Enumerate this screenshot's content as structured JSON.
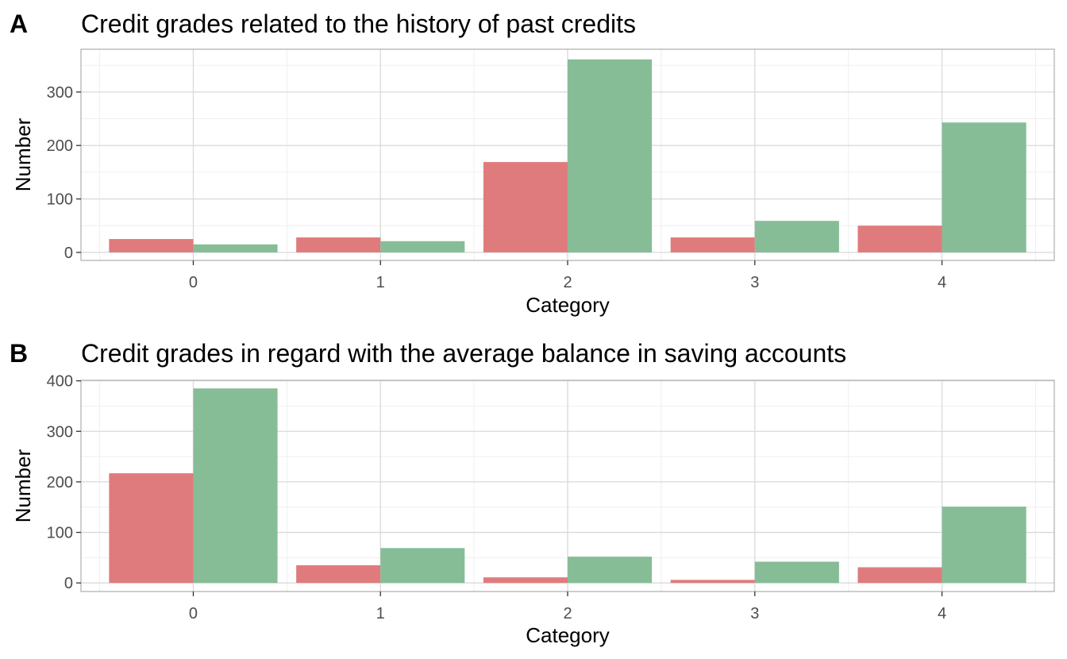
{
  "chart_data": [
    {
      "type": "bar",
      "panel_label": "A",
      "title": "Credit grades related to the history of past credits",
      "xlabel": "Category",
      "ylabel": "Number",
      "categories": [
        "0",
        "1",
        "2",
        "3",
        "4"
      ],
      "series": [
        {
          "color": "#E07B7D",
          "values": [
            25,
            28,
            169,
            28,
            50
          ]
        },
        {
          "color": "#86BD97",
          "values": [
            15,
            21,
            361,
            59,
            243
          ]
        }
      ],
      "ylim": [
        -15,
        380
      ],
      "yticks": [
        0,
        100,
        200,
        300
      ],
      "grid": true,
      "legend": "none"
    },
    {
      "type": "bar",
      "panel_label": "B",
      "title": "Credit grades in regard with the average balance in saving accounts",
      "xlabel": "Category",
      "ylabel": "Number",
      "categories": [
        "0",
        "1",
        "2",
        "3",
        "4"
      ],
      "series": [
        {
          "color": "#E07B7D",
          "values": [
            217,
            35,
            11,
            6,
            31
          ]
        },
        {
          "color": "#86BD97",
          "values": [
            385,
            69,
            52,
            42,
            151
          ]
        }
      ],
      "ylim": [
        -17,
        401
      ],
      "yticks": [
        0,
        100,
        200,
        300,
        400
      ],
      "grid": true,
      "legend": "none"
    }
  ],
  "colors": {
    "grid_major": "#D9D9D9",
    "grid_minor": "#EFEFEF",
    "panel_border": "#B3B3B3"
  }
}
